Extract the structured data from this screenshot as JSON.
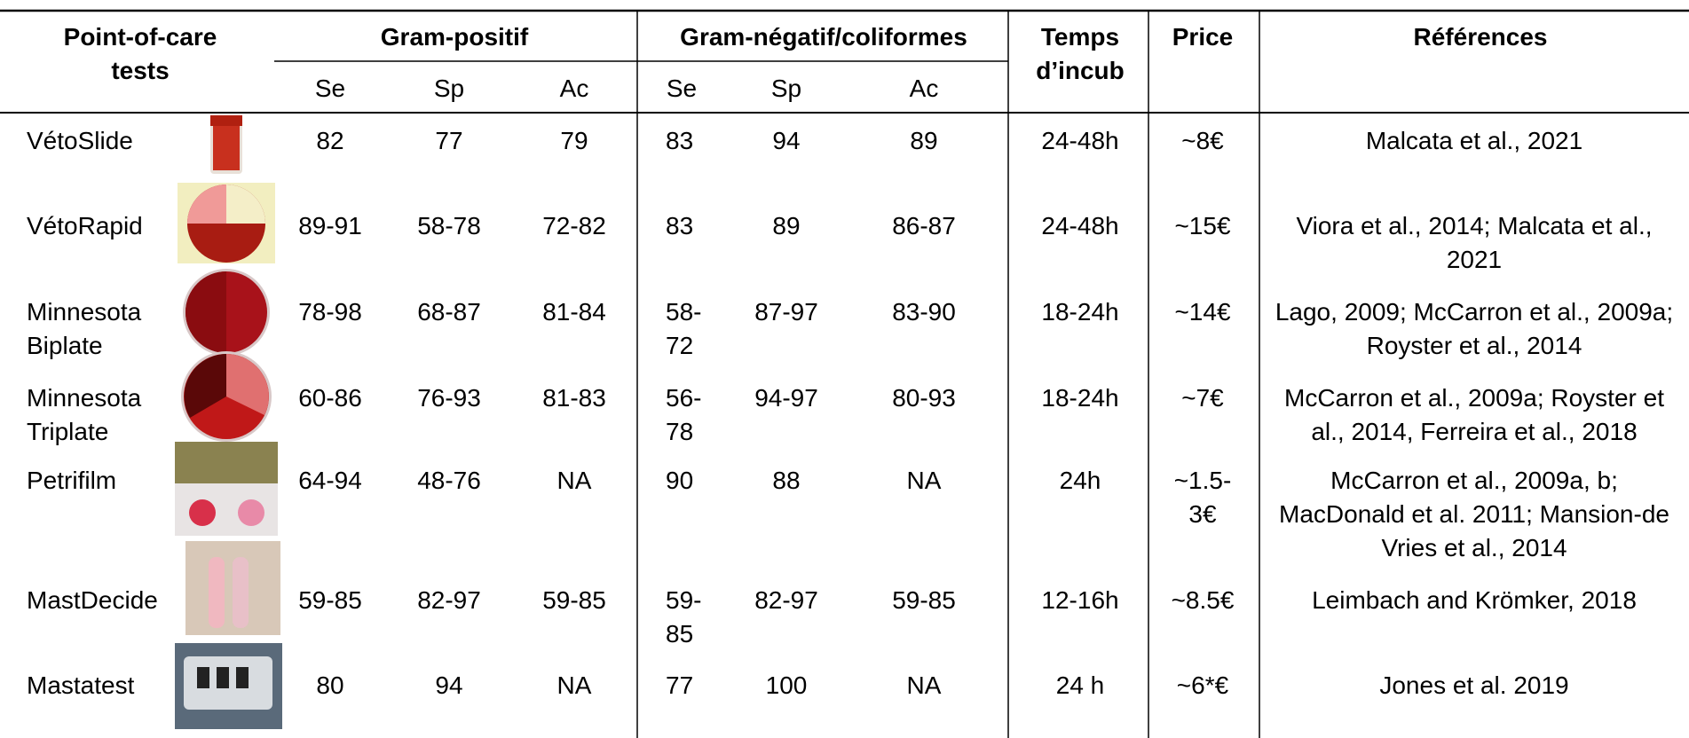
{
  "header": {
    "col1": "Point-of-care tests",
    "groups": [
      "Gram-positif",
      "Gram-négatif/coliformes"
    ],
    "temps": "Temps d’incub",
    "price": "Price",
    "refs": "Références"
  },
  "subheaders": [
    "Se",
    "Sp",
    "Ac",
    "Se",
    "Sp",
    "Ac"
  ],
  "rows": [
    [
      "VétoSlide",
      "82",
      "77",
      "79",
      "83",
      "94",
      "89",
      "24-48h",
      "~8€",
      "Malcata et al., 2021"
    ],
    [
      "VétoRapid",
      "89-91",
      "58-78",
      "72-82",
      "83",
      "89",
      "86-87",
      "24-48h",
      "~15€",
      "Viora et al., 2014; Malcata et al., 2021"
    ],
    [
      "Minnesota Biplate",
      "78-98",
      "68-87",
      "81-84",
      "58-72",
      "87-97",
      "83-90",
      "18-24h",
      "~14€",
      "Lago, 2009; McCarron et al., 2009a; Royster et al., 2014"
    ],
    [
      "Minnesota Triplate",
      "60-86",
      "76-93",
      "81-83",
      "56-78",
      "94-97",
      "80-93",
      "18-24h",
      "~7€",
      "McCarron et al., 2009a; Royster et al., 2014, Ferreira et al., 2018"
    ],
    [
      "Petrifilm",
      "64-94",
      "48-76",
      "NA",
      "90",
      "88",
      "NA",
      "24h",
      "~1.5-3€",
      "McCarron et al., 2009a, b; MacDonald et al. 2011; Mansion-de Vries et al., 2014"
    ],
    [
      "MastDecide",
      "59-85",
      "82-97",
      "59-85",
      "59-85",
      "82-97",
      "59-85",
      "12-16h",
      "~8.5€",
      "Leimbach and Krömker, 2018"
    ],
    [
      "Mastatest",
      "80",
      "94",
      "NA",
      "77",
      "100",
      "NA",
      "24 h",
      "~6*€",
      "Jones et al. 2019"
    ]
  ]
}
